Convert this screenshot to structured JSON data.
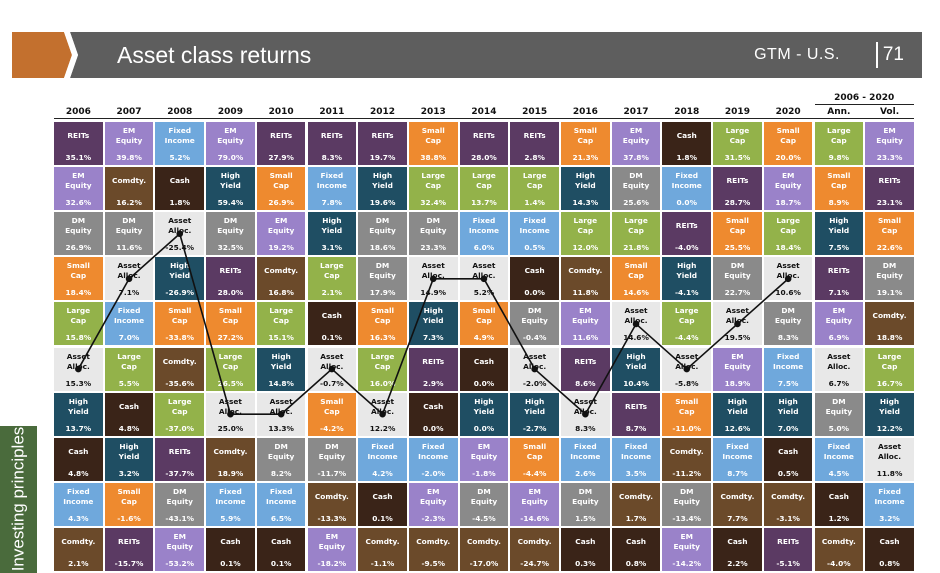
{
  "header": {
    "title": "Asset class returns",
    "source": "GTM - U.S.",
    "page": "71"
  },
  "sidetab": {
    "label": "Investing principles"
  },
  "colors": {
    "REITs": "#5b3a63",
    "EM Equity": "#9a82c9",
    "Fixed Income": "#6fa8dc",
    "Cash": "#3a2418",
    "Small Cap": "#ee8a2f",
    "Large Cap": "#93b24a",
    "DM Equity": "#8a8a8a",
    "High Yield": "#1f4e63",
    "Comdty.": "#6b4a2a",
    "Asset Alloc.": "#e8e8e8"
  },
  "chart_data": {
    "type": "table",
    "title": "Asset class returns",
    "period_label": "2006 - 2020",
    "columns": [
      "2006",
      "2007",
      "2008",
      "2009",
      "2010",
      "2011",
      "2012",
      "2013",
      "2014",
      "2015",
      "2016",
      "2017",
      "2018",
      "2019",
      "2020",
      "Ann.",
      "Vol."
    ],
    "grid": [
      [
        [
          "REITs",
          "35.1%"
        ],
        [
          "EM Equity",
          "39.8%"
        ],
        [
          "Fixed Income",
          "5.2%"
        ],
        [
          "EM Equity",
          "79.0%"
        ],
        [
          "REITs",
          "27.9%"
        ],
        [
          "REITs",
          "8.3%"
        ],
        [
          "REITs",
          "19.7%"
        ],
        [
          "Small Cap",
          "38.8%"
        ],
        [
          "REITs",
          "28.0%"
        ],
        [
          "REITs",
          "2.8%"
        ],
        [
          "Small Cap",
          "21.3%"
        ],
        [
          "EM Equity",
          "37.8%"
        ],
        [
          "Cash",
          "1.8%"
        ],
        [
          "Large Cap",
          "31.5%"
        ],
        [
          "Small Cap",
          "20.0%"
        ],
        [
          "Large Cap",
          "9.8%"
        ],
        [
          "EM Equity",
          "23.3%"
        ]
      ],
      [
        [
          "EM Equity",
          "32.6%"
        ],
        [
          "Comdty.",
          "16.2%"
        ],
        [
          "Cash",
          "1.8%"
        ],
        [
          "High Yield",
          "59.4%"
        ],
        [
          "Small Cap",
          "26.9%"
        ],
        [
          "Fixed Income",
          "7.8%"
        ],
        [
          "High Yield",
          "19.6%"
        ],
        [
          "Large Cap",
          "32.4%"
        ],
        [
          "Large Cap",
          "13.7%"
        ],
        [
          "Large Cap",
          "1.4%"
        ],
        [
          "High Yield",
          "14.3%"
        ],
        [
          "DM Equity",
          "25.6%"
        ],
        [
          "Fixed Income",
          "0.0%"
        ],
        [
          "REITs",
          "28.7%"
        ],
        [
          "EM Equity",
          "18.7%"
        ],
        [
          "Small Cap",
          "8.9%"
        ],
        [
          "REITs",
          "23.1%"
        ]
      ],
      [
        [
          "DM Equity",
          "26.9%"
        ],
        [
          "DM Equity",
          "11.6%"
        ],
        [
          "Asset Alloc.",
          "-25.4%"
        ],
        [
          "DM Equity",
          "32.5%"
        ],
        [
          "EM Equity",
          "19.2%"
        ],
        [
          "High Yield",
          "3.1%"
        ],
        [
          "DM Equity",
          "18.6%"
        ],
        [
          "DM Equity",
          "23.3%"
        ],
        [
          "Fixed Income",
          "6.0%"
        ],
        [
          "Fixed Income",
          "0.5%"
        ],
        [
          "Large Cap",
          "12.0%"
        ],
        [
          "Large Cap",
          "21.8%"
        ],
        [
          "REITs",
          "-4.0%"
        ],
        [
          "Small Cap",
          "25.5%"
        ],
        [
          "Large Cap",
          "18.4%"
        ],
        [
          "High Yield",
          "7.5%"
        ],
        [
          "Small Cap",
          "22.6%"
        ]
      ],
      [
        [
          "Small Cap",
          "18.4%"
        ],
        [
          "Asset Alloc.",
          "7.1%"
        ],
        [
          "High Yield",
          "-26.9%"
        ],
        [
          "REITs",
          "28.0%"
        ],
        [
          "Comdty.",
          "16.8%"
        ],
        [
          "Large Cap",
          "2.1%"
        ],
        [
          "DM Equity",
          "17.9%"
        ],
        [
          "Asset Alloc.",
          "14.9%"
        ],
        [
          "Asset Alloc.",
          "5.2%"
        ],
        [
          "Cash",
          "0.0%"
        ],
        [
          "Comdty.",
          "11.8%"
        ],
        [
          "Small Cap",
          "14.6%"
        ],
        [
          "High Yield",
          "-4.1%"
        ],
        [
          "DM Equity",
          "22.7%"
        ],
        [
          "Asset Alloc.",
          "10.6%"
        ],
        [
          "REITs",
          "7.1%"
        ],
        [
          "DM Equity",
          "19.1%"
        ]
      ],
      [
        [
          "Large Cap",
          "15.8%"
        ],
        [
          "Fixed Income",
          "7.0%"
        ],
        [
          "Small Cap",
          "-33.8%"
        ],
        [
          "Small Cap",
          "27.2%"
        ],
        [
          "Large Cap",
          "15.1%"
        ],
        [
          "Cash",
          "0.1%"
        ],
        [
          "Small Cap",
          "16.3%"
        ],
        [
          "High Yield",
          "7.3%"
        ],
        [
          "Small Cap",
          "4.9%"
        ],
        [
          "DM Equity",
          "-0.4%"
        ],
        [
          "EM Equity",
          "11.6%"
        ],
        [
          "Asset Alloc.",
          "14.6%"
        ],
        [
          "Large Cap",
          "-4.4%"
        ],
        [
          "Asset Alloc.",
          "19.5%"
        ],
        [
          "DM Equity",
          "8.3%"
        ],
        [
          "EM Equity",
          "6.9%"
        ],
        [
          "Comdty.",
          "18.8%"
        ]
      ],
      [
        [
          "Asset Alloc.",
          "15.3%"
        ],
        [
          "Large Cap",
          "5.5%"
        ],
        [
          "Comdty.",
          "-35.6%"
        ],
        [
          "Large Cap",
          "26.5%"
        ],
        [
          "High Yield",
          "14.8%"
        ],
        [
          "Asset Alloc.",
          "-0.7%"
        ],
        [
          "Large Cap",
          "16.0%"
        ],
        [
          "REITs",
          "2.9%"
        ],
        [
          "Cash",
          "0.0%"
        ],
        [
          "Asset Alloc.",
          "-2.0%"
        ],
        [
          "REITs",
          "8.6%"
        ],
        [
          "High Yield",
          "10.4%"
        ],
        [
          "Asset Alloc.",
          "-5.8%"
        ],
        [
          "EM Equity",
          "18.9%"
        ],
        [
          "Fixed Income",
          "7.5%"
        ],
        [
          "Asset Alloc.",
          "6.7%"
        ],
        [
          "Large Cap",
          "16.7%"
        ]
      ],
      [
        [
          "High Yield",
          "13.7%"
        ],
        [
          "Cash",
          "4.8%"
        ],
        [
          "Large Cap",
          "-37.0%"
        ],
        [
          "Asset Alloc.",
          "25.0%"
        ],
        [
          "Asset Alloc.",
          "13.3%"
        ],
        [
          "Small Cap",
          "-4.2%"
        ],
        [
          "Asset Alloc.",
          "12.2%"
        ],
        [
          "Cash",
          "0.0%"
        ],
        [
          "High Yield",
          "0.0%"
        ],
        [
          "High Yield",
          "-2.7%"
        ],
        [
          "Asset Alloc.",
          "8.3%"
        ],
        [
          "REITs",
          "8.7%"
        ],
        [
          "Small Cap",
          "-11.0%"
        ],
        [
          "High Yield",
          "12.6%"
        ],
        [
          "High Yield",
          "7.0%"
        ],
        [
          "DM Equity",
          "5.0%"
        ],
        [
          "High Yield",
          "12.2%"
        ]
      ],
      [
        [
          "Cash",
          "4.8%"
        ],
        [
          "High Yield",
          "3.2%"
        ],
        [
          "REITs",
          "-37.7%"
        ],
        [
          "Comdty.",
          "18.9%"
        ],
        [
          "DM Equity",
          "8.2%"
        ],
        [
          "DM Equity",
          "-11.7%"
        ],
        [
          "Fixed Income",
          "4.2%"
        ],
        [
          "Fixed Income",
          "-2.0%"
        ],
        [
          "EM Equity",
          "-1.8%"
        ],
        [
          "Small Cap",
          "-4.4%"
        ],
        [
          "Fixed Income",
          "2.6%"
        ],
        [
          "Fixed Income",
          "3.5%"
        ],
        [
          "Comdty.",
          "-11.2%"
        ],
        [
          "Fixed Income",
          "8.7%"
        ],
        [
          "Cash",
          "0.5%"
        ],
        [
          "Fixed Income",
          "4.5%"
        ],
        [
          "Asset Alloc.",
          "11.8%"
        ]
      ],
      [
        [
          "Fixed Income",
          "4.3%"
        ],
        [
          "Small Cap",
          "-1.6%"
        ],
        [
          "DM Equity",
          "-43.1%"
        ],
        [
          "Fixed Income",
          "5.9%"
        ],
        [
          "Fixed Income",
          "6.5%"
        ],
        [
          "Comdty.",
          "-13.3%"
        ],
        [
          "Cash",
          "0.1%"
        ],
        [
          "EM Equity",
          "-2.3%"
        ],
        [
          "DM Equity",
          "-4.5%"
        ],
        [
          "EM Equity",
          "-14.6%"
        ],
        [
          "DM Equity",
          "1.5%"
        ],
        [
          "Comdty.",
          "1.7%"
        ],
        [
          "DM Equity",
          "-13.4%"
        ],
        [
          "Comdty.",
          "7.7%"
        ],
        [
          "Comdty.",
          "-3.1%"
        ],
        [
          "Cash",
          "1.2%"
        ],
        [
          "Fixed Income",
          "3.2%"
        ]
      ],
      [
        [
          "Comdty.",
          "2.1%"
        ],
        [
          "REITs",
          "-15.7%"
        ],
        [
          "EM Equity",
          "-53.2%"
        ],
        [
          "Cash",
          "0.1%"
        ],
        [
          "Cash",
          "0.1%"
        ],
        [
          "EM Equity",
          "-18.2%"
        ],
        [
          "Comdty.",
          "-1.1%"
        ],
        [
          "Comdty.",
          "-9.5%"
        ],
        [
          "Comdty.",
          "-17.0%"
        ],
        [
          "Comdty.",
          "-24.7%"
        ],
        [
          "Cash",
          "0.3%"
        ],
        [
          "Cash",
          "0.8%"
        ],
        [
          "EM Equity",
          "-14.2%"
        ],
        [
          "Cash",
          "2.2%"
        ],
        [
          "REITs",
          "-5.1%"
        ],
        [
          "Comdty.",
          "-4.0%"
        ],
        [
          "Cash",
          "0.8%"
        ]
      ]
    ]
  }
}
